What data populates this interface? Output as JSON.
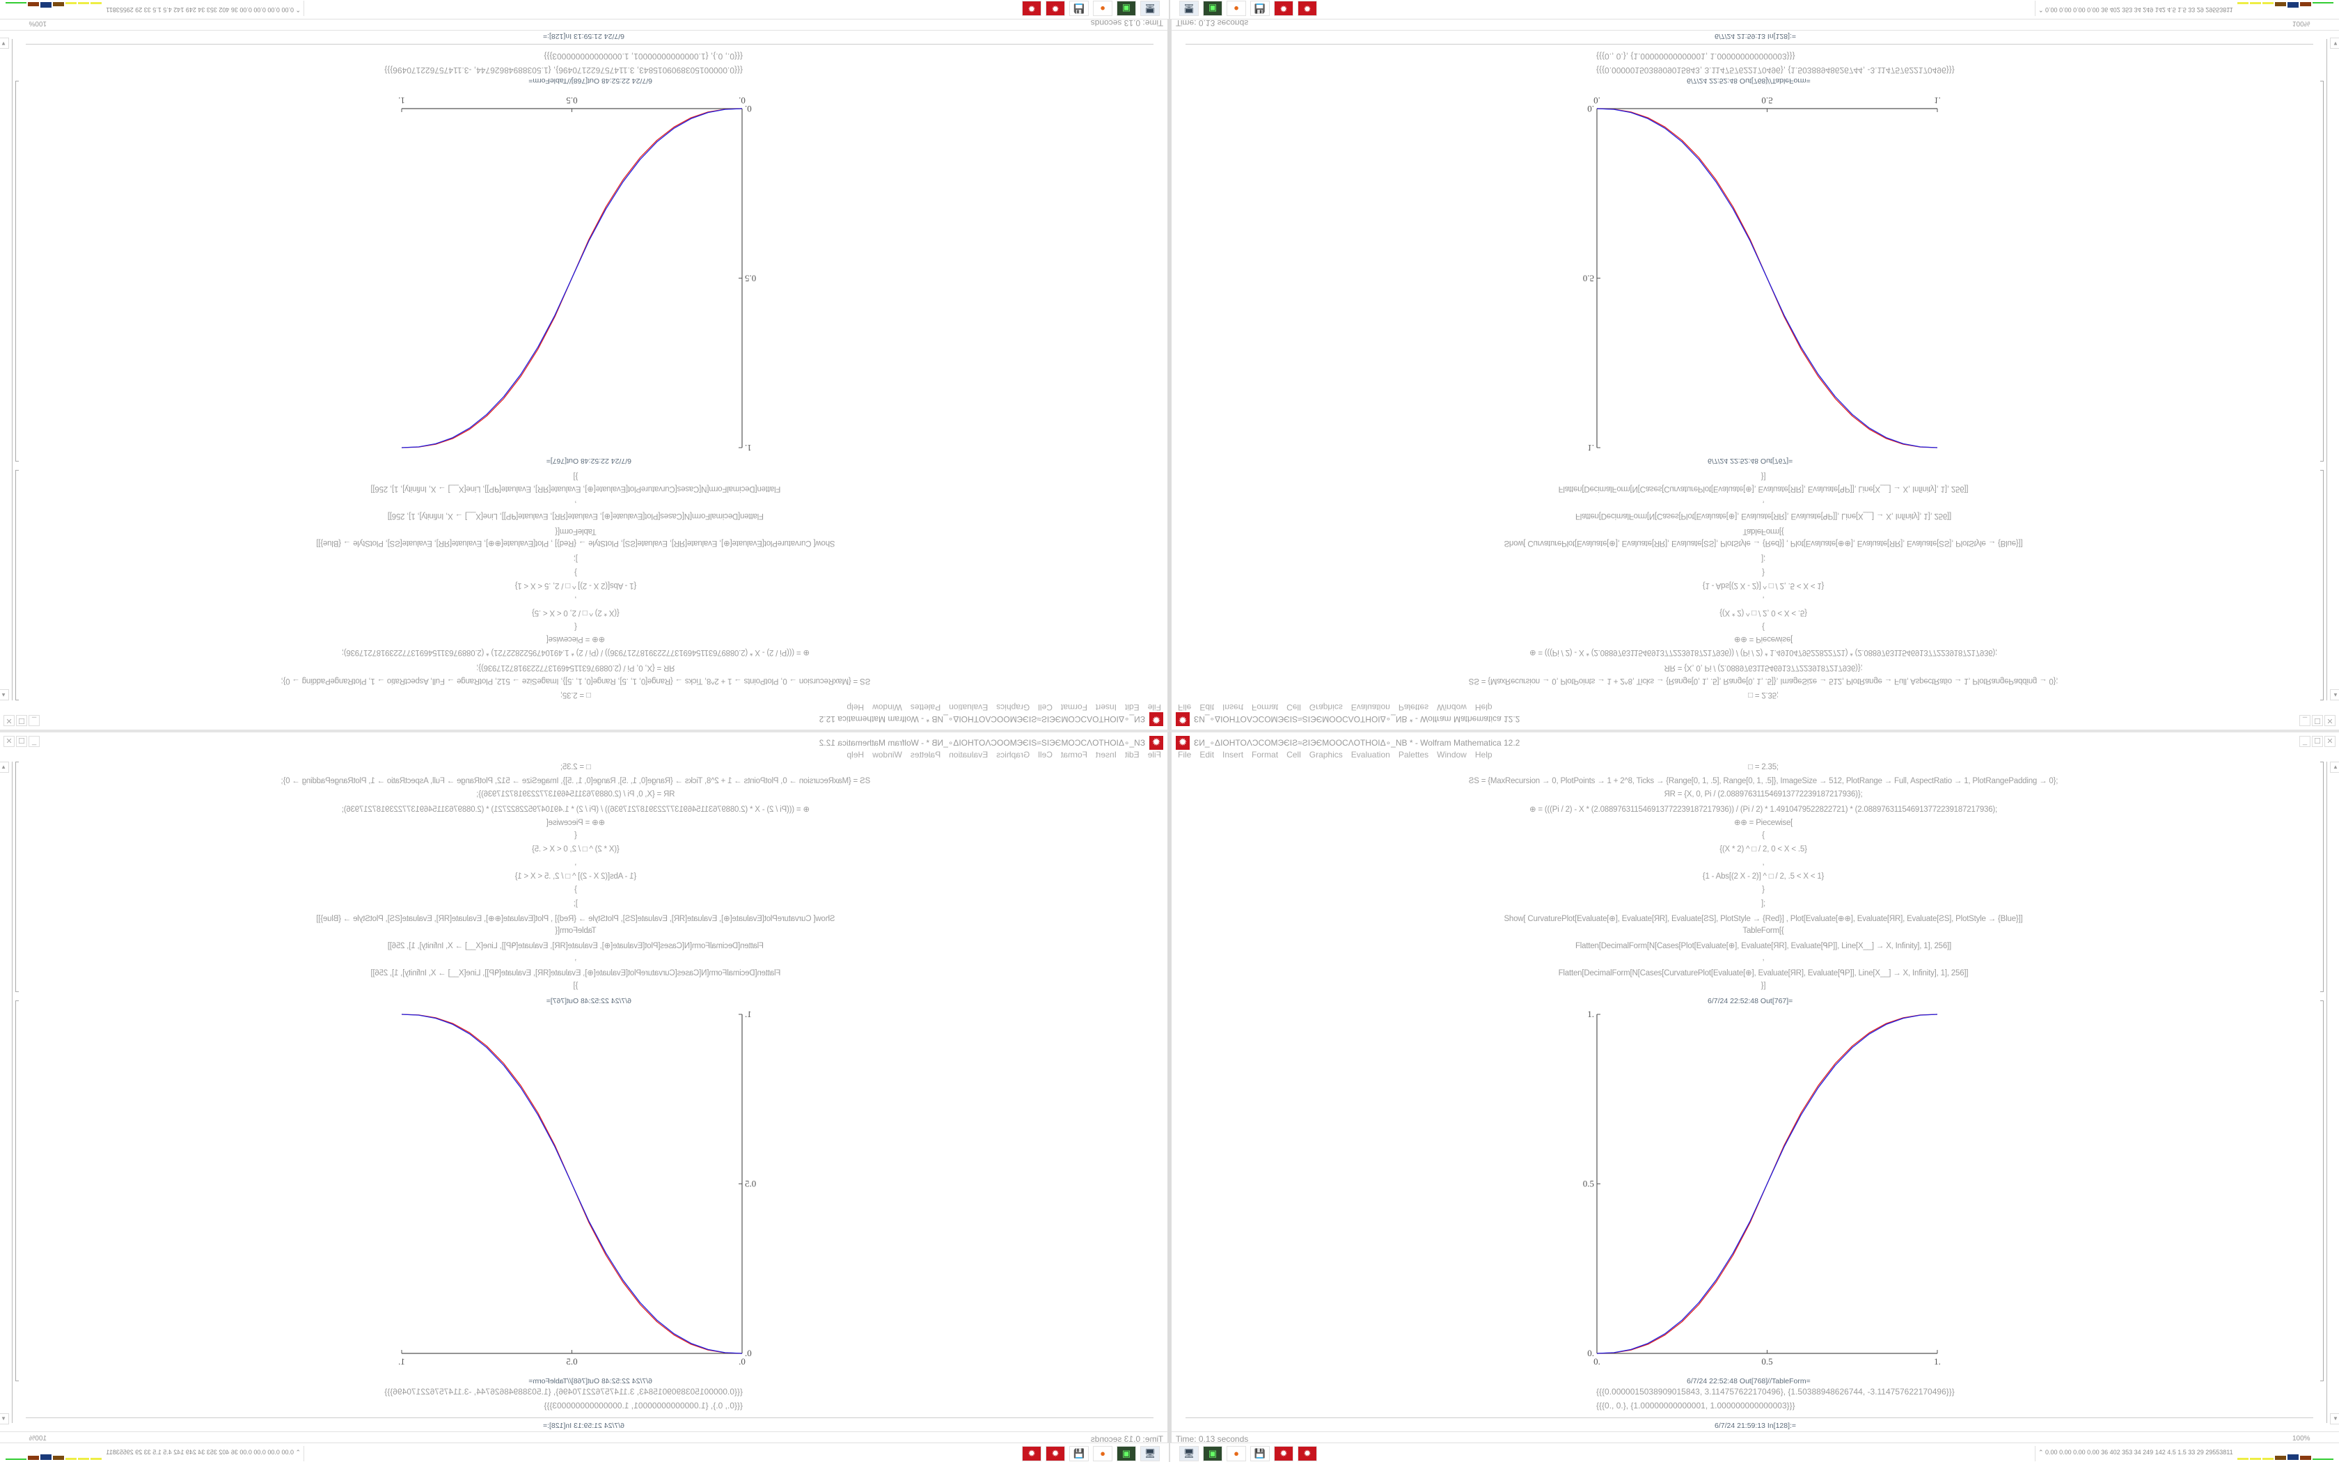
{
  "window": {
    "title": "ƐИ_∘ΔIOHTOΛƆCOMЭЄIƧ≈ƧIЭЄMOOCΛOTHOIΔ∘_NB * - Wolfram Mathematica 12.2",
    "menu": [
      "File",
      "Edit",
      "Insert",
      "Format",
      "Cell",
      "Graphics",
      "Evaluation",
      "Palettes",
      "Window",
      "Help"
    ],
    "controls": {
      "minimize": "_",
      "maximize": "☐",
      "close": "✕"
    }
  },
  "notebook": {
    "input_lines": [
      "□ = 2.35;",
      "ƧS = {MaxRecursion → 0, PlotPoints → 1 + 2^8, Ticks → {Range[0, 1, .5], Range[0, 1, .5]}, ImageSize → 512, PlotRange → Full, AspectRatio → 1, PlotRangePadding → 0};",
      "ЯR = {X, 0, Pi / (2.088976311546913772239187217936)};",
      "⊕ = (((Pi / 2) - X * (2.088976311546913772239187217936)) / (Pi / 2) * 1.4910479522822721) * (2.088976311546913772239187217936);",
      "⊕⊕ = Piecewise[",
      "{",
      "{(X * 2) ^ □ / 2, 0 < X < .5}",
      ",",
      "{1 - Abs[(2 X - 2)] ^ □ / 2, .5 < X < 1}",
      "}",
      "];",
      "Show[   CurvaturePlot[Evaluate[⊕], Evaluate[ЯR], Evaluate[ƧS], PlotStyle → {Red}]   ,   Plot[Evaluate[⊕⊕], Evaluate[ЯR], Evaluate[ƧS], PlotStyle → {Blue}]]",
      "TableForm[{",
      "Flatten[DecimalForm[N[Cases[Plot[Evaluate[⊕], Evaluate[ЯR], Evaluate[ᑫP]], Line[X__] → X, Infinity], 1], 256]]",
      ",",
      "Flatten[DecimalForm[N[Cases[CurvaturePlot[Evaluate[⊕], Evaluate[ЯR], Evaluate[ᑫP]], Line[X__] → X, Infinity], 1], 256]]",
      "}]"
    ],
    "out_plot_label": "6/7/24 22:52:48 Out[767]=",
    "out_table_label": "6/7/24 22:52:48 Out[768]//TableForm=",
    "out_table_rows": [
      "{{{0.0000015038909015843, 3.114757622170496}, {1.50388948626744, -3.114757622170496}}}",
      "{{{0., 0.}, {1.00000000000001, 1.000000000000003}}}"
    ],
    "next_input_label": "6/7/24 21:59:13 In[128]:="
  },
  "status": {
    "time": "Time: 0.13 seconds",
    "zoom": "100%"
  },
  "taskbar": {
    "icons": [
      "monitor-icon",
      "terminal-icon",
      "firefox-icon",
      "floppy-64-icon",
      "mathematica-icon",
      "mathematica-icon"
    ],
    "tray_text": "0.00 0.00 0.00 0.00  36  402  353  34  249  142  4.5  1.5  33  29  29553811"
  },
  "chart_data": {
    "type": "line",
    "x_ticks": [
      "0.",
      "0.5",
      "1."
    ],
    "y_ticks": [
      "0.",
      "0.5",
      "1."
    ],
    "xlim": [
      0,
      1
    ],
    "ylim": [
      0,
      1
    ],
    "grid": false,
    "x": [
      0,
      0.05,
      0.1,
      0.15,
      0.2,
      0.25,
      0.3,
      0.35,
      0.4,
      0.45,
      0.5,
      0.55,
      0.6,
      0.65,
      0.7,
      0.75,
      0.8,
      0.85,
      0.9,
      0.95,
      1
    ],
    "series": [
      {
        "color": "#e02020",
        "values": [
          0,
          0.0018,
          0.01,
          0.027,
          0.0545,
          0.0935,
          0.145,
          0.21,
          0.29,
          0.386,
          0.5,
          0.614,
          0.71,
          0.79,
          0.855,
          0.9065,
          0.9455,
          0.973,
          0.99,
          0.9982,
          1
        ]
      },
      {
        "color": "#2020e0",
        "values": [
          0,
          0.0022,
          0.0114,
          0.0295,
          0.0581,
          0.0981,
          0.1506,
          0.2163,
          0.296,
          0.3903,
          0.5,
          0.6097,
          0.704,
          0.7837,
          0.8494,
          0.9019,
          0.9419,
          0.9705,
          0.9886,
          0.9978,
          1
        ]
      }
    ]
  }
}
